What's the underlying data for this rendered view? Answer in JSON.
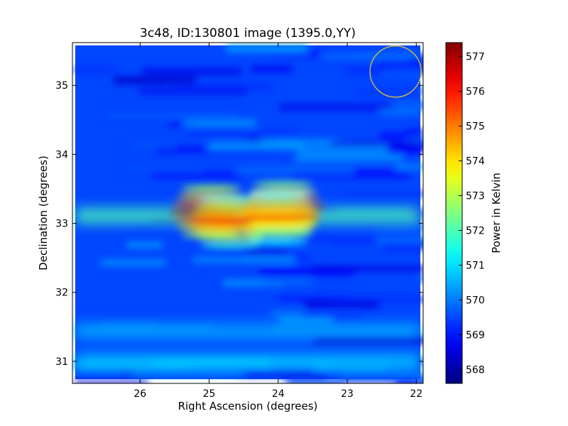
{
  "chart_data": {
    "type": "heatmap",
    "title": "3c48, ID:130801 image (1395.0,YY)",
    "xlabel": "Right Ascension (degrees)",
    "ylabel": "Declination (degrees)",
    "xlim": [
      26.98,
      21.9
    ],
    "ylim": [
      30.68,
      35.62
    ],
    "x_ticks": [
      26,
      25,
      24,
      23,
      22
    ],
    "x_tick_labels": [
      "26",
      "25",
      "24",
      "23",
      "22"
    ],
    "y_ticks": [
      31,
      32,
      33,
      34,
      35
    ],
    "y_tick_labels": [
      "31",
      "32",
      "33",
      "34",
      "35"
    ],
    "colormap": "jet",
    "colorbar": {
      "label": "Power in Kelvin",
      "vmin": 567.6,
      "vmax": 577.4,
      "ticks": [
        568,
        569,
        570,
        571,
        572,
        573,
        574,
        575,
        576,
        577
      ],
      "tick_labels": [
        "568",
        "569",
        "570",
        "571",
        "572",
        "573",
        "574",
        "575",
        "576",
        "577"
      ]
    },
    "background_level": 569.5,
    "features": [
      {
        "kind": "blob",
        "ra": 24.97,
        "dec": 33.17,
        "value": 576.8
      },
      {
        "kind": "blob",
        "ra": 24.7,
        "dec": 33.02,
        "value": 575.6
      },
      {
        "kind": "blob",
        "ra": 23.93,
        "dec": 33.23,
        "value": 576.3
      },
      {
        "kind": "blob",
        "ra": 24.0,
        "dec": 33.07,
        "value": 575.2
      },
      {
        "kind": "band",
        "dec": 33.12,
        "value": 572.0
      },
      {
        "kind": "band",
        "dec": 31.0,
        "value": 571.0
      },
      {
        "kind": "band",
        "dec": 31.45,
        "value": 570.6
      }
    ],
    "annotations": [
      {
        "kind": "circle",
        "ra": 22.3,
        "dec": 35.2,
        "radius_deg": 0.37,
        "color": "#d4c33a"
      }
    ]
  }
}
